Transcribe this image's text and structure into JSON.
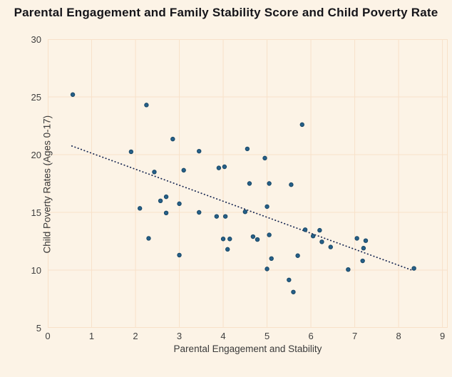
{
  "chart_data": {
    "type": "scatter",
    "title": "Parental Engagement and Family Stability Score and Child Poverty Rate",
    "xlabel": "Parental Engagement and Stability",
    "ylabel": "Child Poverty Rates (Ages 0-17)",
    "xlim": [
      0,
      9.12
    ],
    "ylim": [
      5,
      30
    ],
    "x_ticks": [
      0,
      1,
      2,
      3,
      4,
      5,
      6,
      7,
      8,
      9
    ],
    "y_ticks": [
      5,
      10,
      15,
      20,
      25,
      30
    ],
    "grid": true,
    "legend": "none",
    "points": [
      [
        0.57,
        25.2
      ],
      [
        2.25,
        24.3
      ],
      [
        2.85,
        21.35
      ],
      [
        1.9,
        20.25
      ],
      [
        3.45,
        20.3
      ],
      [
        4.55,
        20.5
      ],
      [
        4.95,
        19.7
      ],
      [
        5.8,
        22.6
      ],
      [
        2.43,
        18.5
      ],
      [
        3.1,
        18.65
      ],
      [
        3.9,
        18.85
      ],
      [
        4.03,
        18.95
      ],
      [
        4.6,
        17.5
      ],
      [
        5.05,
        17.5
      ],
      [
        5.55,
        17.4
      ],
      [
        2.1,
        15.35
      ],
      [
        2.57,
        16.0
      ],
      [
        2.7,
        16.35
      ],
      [
        2.7,
        14.95
      ],
      [
        3.0,
        15.75
      ],
      [
        3.45,
        15.0
      ],
      [
        4.5,
        15.05
      ],
      [
        5.0,
        15.5
      ],
      [
        3.85,
        14.65
      ],
      [
        4.05,
        14.65
      ],
      [
        2.3,
        12.75
      ],
      [
        3.0,
        11.3
      ],
      [
        4.0,
        12.7
      ],
      [
        4.15,
        12.7
      ],
      [
        4.1,
        11.8
      ],
      [
        4.68,
        12.9
      ],
      [
        4.78,
        12.65
      ],
      [
        5.05,
        13.05
      ],
      [
        5.1,
        11.0
      ],
      [
        5.0,
        10.1
      ],
      [
        5.7,
        11.25
      ],
      [
        5.5,
        9.15
      ],
      [
        5.6,
        8.1
      ],
      [
        5.87,
        13.5
      ],
      [
        6.05,
        12.95
      ],
      [
        6.2,
        13.45
      ],
      [
        6.25,
        12.45
      ],
      [
        6.45,
        12.0
      ],
      [
        6.85,
        10.05
      ],
      [
        7.05,
        12.75
      ],
      [
        7.25,
        12.55
      ],
      [
        7.2,
        11.9
      ],
      [
        7.18,
        10.8
      ],
      [
        8.35,
        10.15
      ]
    ],
    "trendline": {
      "style": "dotted",
      "x1": 0.55,
      "y1": 20.75,
      "x2": 8.3,
      "y2": 10.0
    },
    "colors": {
      "background": "#fcf3e6",
      "grid": "#f8e1c9",
      "point_fill": "#266089",
      "point_stroke": "#184766",
      "trend": "#1c2b55",
      "title_text": "#15151a",
      "axis_text": "#3a3a3a"
    }
  }
}
